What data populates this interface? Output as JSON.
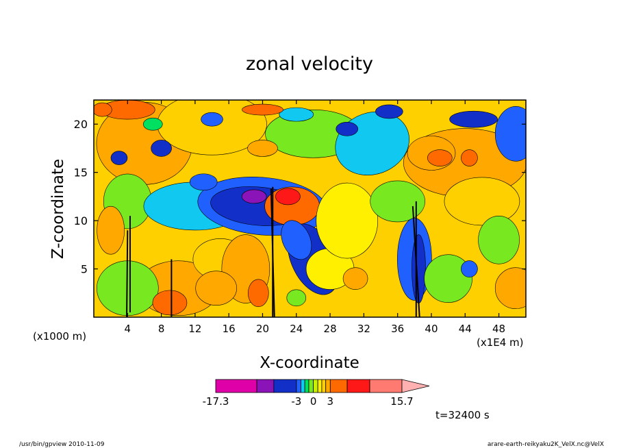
{
  "chart_data": {
    "type": "heatmap",
    "title": "zonal velocity",
    "xlabel": "X-coordinate",
    "ylabel": "Z-coordinate",
    "x_unit_left": "(x1000 m)",
    "x_unit_right": "(x1E4 m)",
    "x_ticks": [
      4,
      8,
      12,
      16,
      20,
      24,
      28,
      32,
      36,
      40,
      44,
      48
    ],
    "y_ticks": [
      5,
      10,
      15,
      20
    ],
    "xlim": [
      0,
      51.2
    ],
    "ylim": [
      0,
      22.5
    ],
    "colorbar": {
      "colors": [
        "#e000a8",
        "#8a14b8",
        "#1230c8",
        "#2060ff",
        "#10c8f0",
        "#00e060",
        "#78e820",
        "#c8f000",
        "#fff000",
        "#ffd000",
        "#ffa800",
        "#ff6a00",
        "#ff1818",
        "#ff7a70",
        "#ffb0b0"
      ],
      "tick_labels": [
        "-17.3",
        "-3",
        "0",
        "3",
        "15.7"
      ],
      "tick_positions": [
        -17.3,
        -3,
        0,
        3,
        15.7
      ],
      "bounds": [
        -17.3,
        -10,
        -7,
        -3,
        -2.2,
        -1.5,
        -0.8,
        0,
        0.8,
        1.5,
        2.2,
        3,
        6,
        10,
        15.7
      ]
    },
    "field_colors": {
      "strong_neg": "#e000a8",
      "neg_purple": "#8a14b8",
      "neg_dark_blue": "#1230c8",
      "neg_blue": "#2060ff",
      "neg_cyan": "#10c8f0",
      "neg_green": "#00e060",
      "near_zero_lightgreen": "#78e820",
      "near_zero_yellow": "#fff000",
      "pos_yelloworange": "#ffd000",
      "pos_orange": "#ffa800",
      "pos_darkorange": "#ff6a00",
      "pos_red": "#ff1818",
      "pos_salmon": "#ff7a70"
    }
  },
  "footer": {
    "time": "t=32400 s",
    "left_note": "/usr/bin/gpview   2010-11-09",
    "right_note": "arare-earth-reikyaku2K_VelX.nc@VelX"
  }
}
